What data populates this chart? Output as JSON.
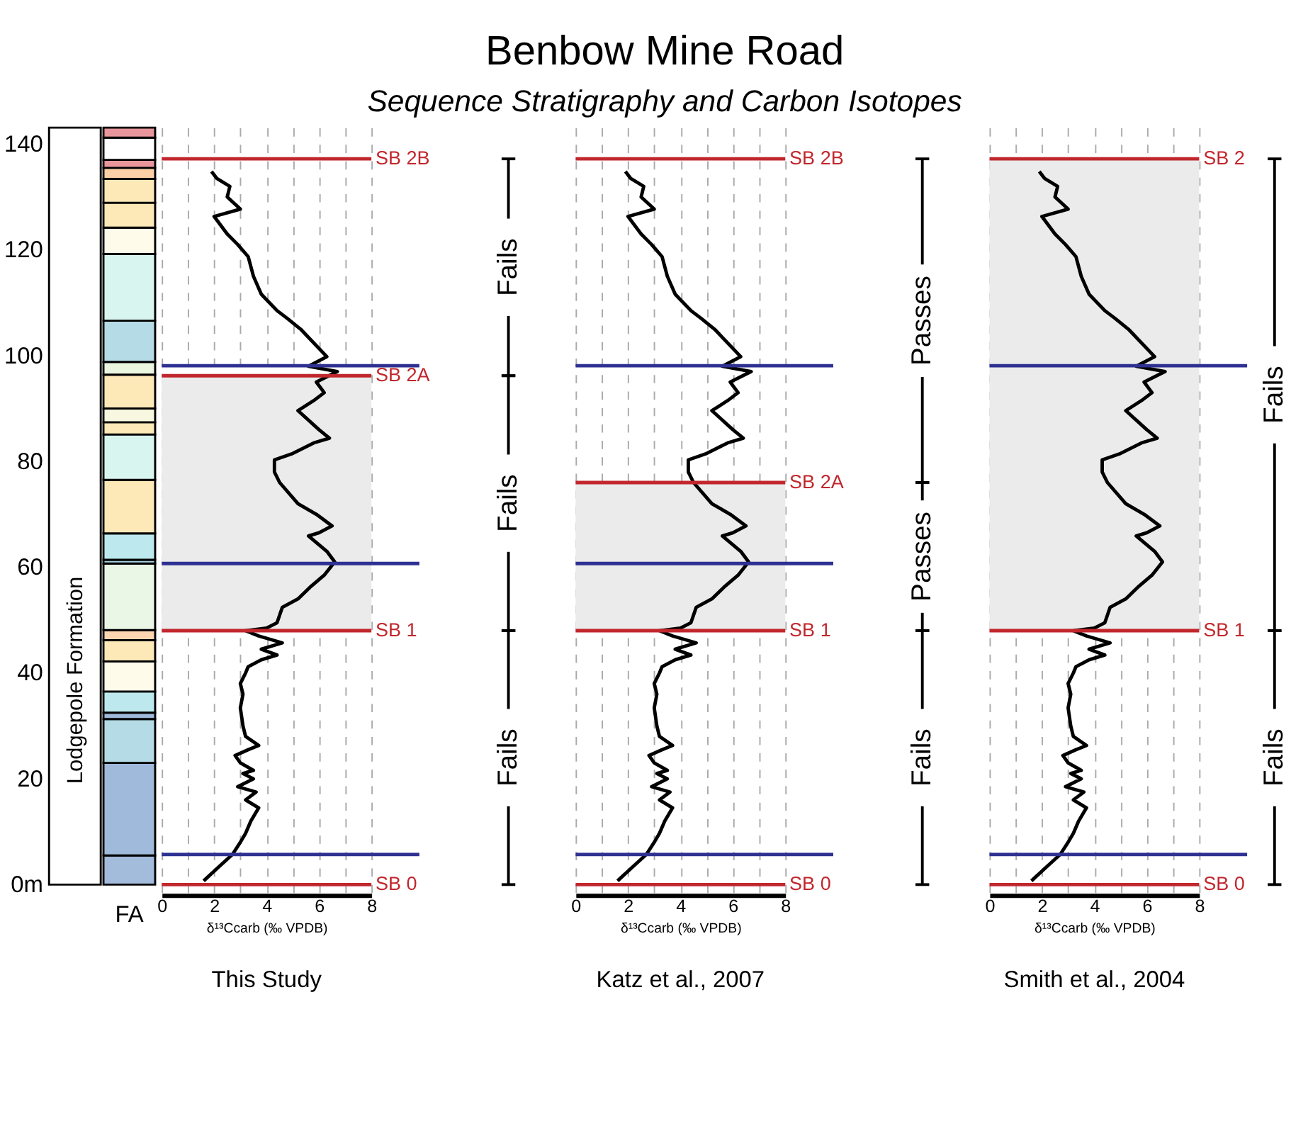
{
  "chart_data": [
    {
      "type": "other",
      "title": "Benbow Mine Road",
      "subtitle": "Sequence Stratigraphy and Carbon Isotopes"
    },
    {
      "type": "bar",
      "stacked": true,
      "categories": [
        null,
        "FA"
      ],
      "series": [
        {
          "color": "#ffffff",
          "values": [
            143.1,
            null
          ]
        },
        {
          "color": "#a3bcdc",
          "values": [
            null,
            5.5
          ]
        },
        {
          "color": "#a0badb",
          "values": [
            null,
            17.5
          ]
        },
        {
          "color": "#b5dce6",
          "values": [
            null,
            8.3
          ]
        },
        {
          "color": "#a0badb",
          "values": [
            null,
            1.2
          ]
        },
        {
          "color": "#bde9ee",
          "values": [
            null,
            4
          ]
        },
        {
          "color": "#fffbeb",
          "values": [
            null,
            5.7
          ]
        },
        {
          "color": "#fde8b8",
          "values": [
            null,
            4
          ]
        },
        {
          "color": "#fdd5b0",
          "values": [
            null,
            1.9
          ]
        },
        {
          "color": "#eaf6e6",
          "values": [
            null,
            12.6
          ]
        },
        {
          "color": "#a9d4e3",
          "values": [
            null,
            0.7
          ]
        },
        {
          "color": "#bde9ee",
          "values": [
            null,
            5
          ]
        },
        {
          "color": "#fde8b8",
          "values": [
            null,
            10.1
          ]
        },
        {
          "color": "#d9f5ef",
          "values": [
            null,
            8.6
          ]
        },
        {
          "color": "#fde8b8",
          "values": [
            null,
            2.3
          ]
        },
        {
          "color": "#f8f8e0",
          "values": [
            null,
            2.6
          ]
        },
        {
          "color": "#fde8b8",
          "values": [
            null,
            6.4
          ]
        },
        {
          "color": "#eaf6e0",
          "values": [
            null,
            2.4
          ]
        },
        {
          "color": "#b5dce6",
          "values": [
            null,
            7.8
          ]
        },
        {
          "color": "#d9f5ef",
          "values": [
            null,
            12.6
          ]
        },
        {
          "color": "#fffbeb",
          "values": [
            null,
            5
          ]
        },
        {
          "color": "#fde8b8",
          "values": [
            null,
            4.7
          ]
        },
        {
          "color": "#fde8b8",
          "values": [
            null,
            4.5
          ]
        },
        {
          "color": "#fdd0a8",
          "values": [
            null,
            2.1
          ]
        },
        {
          "color": "#e8969c",
          "values": [
            null,
            1.5
          ]
        },
        {
          "color": "#ffffff",
          "values": [
            null,
            4.2
          ]
        },
        {
          "color": "#e8969c",
          "values": [
            null,
            1.9
          ]
        }
      ],
      "ylim": [
        -2,
        143.1
      ],
      "yticks": [
        {
          "value": 0,
          "label": "0m"
        },
        20,
        40,
        60,
        80,
        100,
        120,
        140
      ],
      "grid": false,
      "annotations": [
        "Lodgepole Formation"
      ]
    },
    {
      "type": "line",
      "xlabel": "δ¹³Ccarb (‰ VPDB)",
      "xlim": [
        0,
        8
      ],
      "xticks": [
        0,
        {
          "value": 1,
          "label": null
        },
        2,
        {
          "value": 3,
          "label": null
        },
        4,
        {
          "value": 5,
          "label": null
        },
        6,
        {
          "value": 7,
          "label": null
        },
        8
      ],
      "ylim": [
        -2,
        143.1
      ],
      "tick_labels": "x",
      "grid": "x",
      "series": [
        {
          "color": "#000000",
          "x": [
            1.6,
            2.1,
            2.7,
            3.0,
            3.2,
            3.4,
            3.7,
            3.2,
            3.6,
            2.9,
            3.5,
            3.1,
            3.5,
            3.0,
            2.8,
            3.3,
            3.7,
            3.2,
            3.1,
            3.0,
            3.1,
            3.0,
            3.2,
            3.3,
            3.8,
            4.4,
            3.8,
            4.6,
            3.7,
            3.2,
            4.0,
            4.4,
            4.6,
            5.2,
            5.7,
            6.2,
            6.6,
            6.3,
            5.6,
            6.0,
            6.5,
            5.9,
            5.2,
            4.5,
            4.3,
            4.3,
            5.0,
            5.8,
            6.4,
            6.0,
            5.2,
            5.8,
            6.2,
            5.9,
            6.7,
            5.6,
            6.3,
            5.3,
            4.8,
            4.4,
            3.8,
            3.5,
            3.3,
            2.9,
            2.5,
            2.0,
            3.0,
            2.5,
            2.6,
            2.1,
            1.9
          ],
          "values": [
            0.7,
            3,
            5.7,
            8,
            9.7,
            12,
            14.5,
            16,
            17.5,
            18.5,
            20,
            21,
            21.6,
            23,
            24.4,
            25.5,
            26.3,
            28,
            30,
            33.4,
            36,
            38,
            40,
            41.2,
            42.5,
            43.4,
            44.5,
            45.7,
            47,
            48,
            48.5,
            49.5,
            52.4,
            54,
            56.4,
            58.5,
            61,
            63,
            65.9,
            66.5,
            67.8,
            70,
            72,
            76,
            78,
            80.3,
            81.5,
            83.5,
            84.4,
            86,
            89.6,
            91.5,
            93,
            95,
            97,
            98,
            99.8,
            105,
            107,
            108.5,
            111.6,
            115,
            118.7,
            121,
            123,
            126.3,
            127.7,
            130,
            132,
            133.5,
            134.8
          ]
        }
      ],
      "ref_lines": [
        {
          "axis": "y",
          "value": 0,
          "label": "SB 0",
          "color": "#c1272d"
        },
        {
          "axis": "y",
          "value": 5.7,
          "color": "#2e3192"
        },
        {
          "axis": "y",
          "value": 48,
          "label": "SB 1",
          "color": "#c1272d"
        },
        {
          "axis": "y",
          "value": 60.7,
          "color": "#2e3192"
        },
        {
          "axis": "y",
          "value": 96.2,
          "label": "SB 2A",
          "color": "#c1272d"
        },
        {
          "axis": "y",
          "value": 98.1,
          "color": "#2e3192"
        },
        {
          "axis": "y",
          "value": 137.2,
          "label": "SB 2B",
          "color": "#c1272d"
        }
      ],
      "bands": [
        {
          "axis": "y",
          "from": 48,
          "to": 96.2,
          "color": "#ebebeb"
        }
      ],
      "title": "This Study",
      "annotations": [
        "Fails",
        "Fails",
        "Fails"
      ]
    },
    {
      "type": "line",
      "xlabel": "δ¹³Ccarb (‰ VPDB)",
      "xlim": [
        0,
        8
      ],
      "xticks": [
        0,
        {
          "value": 1,
          "label": null
        },
        2,
        {
          "value": 3,
          "label": null
        },
        4,
        {
          "value": 5,
          "label": null
        },
        6,
        {
          "value": 7,
          "label": null
        },
        8
      ],
      "ylim": [
        -2,
        143.1
      ],
      "tick_labels": "x",
      "grid": "x",
      "series": [
        {
          "color": "#000000",
          "x": [
            1.6,
            2.1,
            2.7,
            3.0,
            3.2,
            3.4,
            3.7,
            3.2,
            3.6,
            2.9,
            3.5,
            3.1,
            3.5,
            3.0,
            2.8,
            3.3,
            3.7,
            3.2,
            3.1,
            3.0,
            3.1,
            3.0,
            3.2,
            3.3,
            3.8,
            4.4,
            3.8,
            4.6,
            3.7,
            3.2,
            4.0,
            4.4,
            4.6,
            5.2,
            5.7,
            6.2,
            6.6,
            6.3,
            5.6,
            6.0,
            6.5,
            5.9,
            5.2,
            4.5,
            4.3,
            4.3,
            5.0,
            5.8,
            6.4,
            6.0,
            5.2,
            5.8,
            6.2,
            5.9,
            6.7,
            5.6,
            6.3,
            5.3,
            4.8,
            4.4,
            3.8,
            3.5,
            3.3,
            2.9,
            2.5,
            2.0,
            3.0,
            2.5,
            2.6,
            2.1,
            1.9
          ],
          "values": [
            0.7,
            3,
            5.7,
            8,
            9.7,
            12,
            14.5,
            16,
            17.5,
            18.5,
            20,
            21,
            21.6,
            23,
            24.4,
            25.5,
            26.3,
            28,
            30,
            33.4,
            36,
            38,
            40,
            41.2,
            42.5,
            43.4,
            44.5,
            45.7,
            47,
            48,
            48.5,
            49.5,
            52.4,
            54,
            56.4,
            58.5,
            61,
            63,
            65.9,
            66.5,
            67.8,
            70,
            72,
            76,
            78,
            80.3,
            81.5,
            83.5,
            84.4,
            86,
            89.6,
            91.5,
            93,
            95,
            97,
            98,
            99.8,
            105,
            107,
            108.5,
            111.6,
            115,
            118.7,
            121,
            123,
            126.3,
            127.7,
            130,
            132,
            133.5,
            134.8
          ]
        }
      ],
      "ref_lines": [
        {
          "axis": "y",
          "value": 0,
          "label": "SB 0",
          "color": "#c1272d"
        },
        {
          "axis": "y",
          "value": 5.7,
          "color": "#2e3192"
        },
        {
          "axis": "y",
          "value": 48,
          "label": "SB 1",
          "color": "#c1272d"
        },
        {
          "axis": "y",
          "value": 60.7,
          "color": "#2e3192"
        },
        {
          "axis": "y",
          "value": 76,
          "label": "SB 2A",
          "color": "#c1272d"
        },
        {
          "axis": "y",
          "value": 98.1,
          "color": "#2e3192"
        },
        {
          "axis": "y",
          "value": 137.2,
          "label": "SB 2B",
          "color": "#c1272d"
        }
      ],
      "bands": [
        {
          "axis": "y",
          "from": 48,
          "to": 76,
          "color": "#ebebeb"
        }
      ],
      "title": "Katz et al., 2007",
      "annotations": [
        "Fails",
        "Passes",
        "Passes"
      ]
    },
    {
      "type": "line",
      "xlabel": "δ¹³Ccarb (‰ VPDB)",
      "xlim": [
        0,
        8
      ],
      "xticks": [
        0,
        {
          "value": 1,
          "label": null
        },
        2,
        {
          "value": 3,
          "label": null
        },
        4,
        {
          "value": 5,
          "label": null
        },
        6,
        {
          "value": 7,
          "label": null
        },
        8
      ],
      "ylim": [
        -2,
        143.1
      ],
      "tick_labels": "x",
      "grid": "x",
      "series": [
        {
          "color": "#000000",
          "x": [
            1.6,
            2.1,
            2.7,
            3.0,
            3.2,
            3.4,
            3.7,
            3.2,
            3.6,
            2.9,
            3.5,
            3.1,
            3.5,
            3.0,
            2.8,
            3.3,
            3.7,
            3.2,
            3.1,
            3.0,
            3.1,
            3.0,
            3.2,
            3.3,
            3.8,
            4.4,
            3.8,
            4.6,
            3.7,
            3.2,
            4.0,
            4.4,
            4.6,
            5.2,
            5.7,
            6.2,
            6.6,
            6.3,
            5.6,
            6.0,
            6.5,
            5.9,
            5.2,
            4.5,
            4.3,
            4.3,
            5.0,
            5.8,
            6.4,
            6.0,
            5.2,
            5.8,
            6.2,
            5.9,
            6.7,
            5.6,
            6.3,
            5.3,
            4.8,
            4.4,
            3.8,
            3.5,
            3.3,
            2.9,
            2.5,
            2.0,
            3.0,
            2.5,
            2.6,
            2.1,
            1.9
          ],
          "values": [
            0.7,
            3,
            5.7,
            8,
            9.7,
            12,
            14.5,
            16,
            17.5,
            18.5,
            20,
            21,
            21.6,
            23,
            24.4,
            25.5,
            26.3,
            28,
            30,
            33.4,
            36,
            38,
            40,
            41.2,
            42.5,
            43.4,
            44.5,
            45.7,
            47,
            48,
            48.5,
            49.5,
            52.4,
            54,
            56.4,
            58.5,
            61,
            63,
            65.9,
            66.5,
            67.8,
            70,
            72,
            76,
            78,
            80.3,
            81.5,
            83.5,
            84.4,
            86,
            89.6,
            91.5,
            93,
            95,
            97,
            98,
            99.8,
            105,
            107,
            108.5,
            111.6,
            115,
            118.7,
            121,
            123,
            126.3,
            127.7,
            130,
            132,
            133.5,
            134.8
          ]
        }
      ],
      "ref_lines": [
        {
          "axis": "y",
          "value": 0,
          "label": "SB 0",
          "color": "#c1272d"
        },
        {
          "axis": "y",
          "value": 5.7,
          "color": "#2e3192"
        },
        {
          "axis": "y",
          "value": 48,
          "label": "SB 1",
          "color": "#c1272d"
        },
        {
          "axis": "y",
          "value": 98.1,
          "color": "#2e3192"
        },
        {
          "axis": "y",
          "value": 137.2,
          "label": "SB 2",
          "color": "#c1272d"
        }
      ],
      "bands": [
        {
          "axis": "y",
          "from": 48,
          "to": 137.2,
          "color": "#ebebeb"
        }
      ],
      "title": "Smith et al., 2004",
      "annotations": [
        "Fails",
        "Fails"
      ]
    }
  ]
}
